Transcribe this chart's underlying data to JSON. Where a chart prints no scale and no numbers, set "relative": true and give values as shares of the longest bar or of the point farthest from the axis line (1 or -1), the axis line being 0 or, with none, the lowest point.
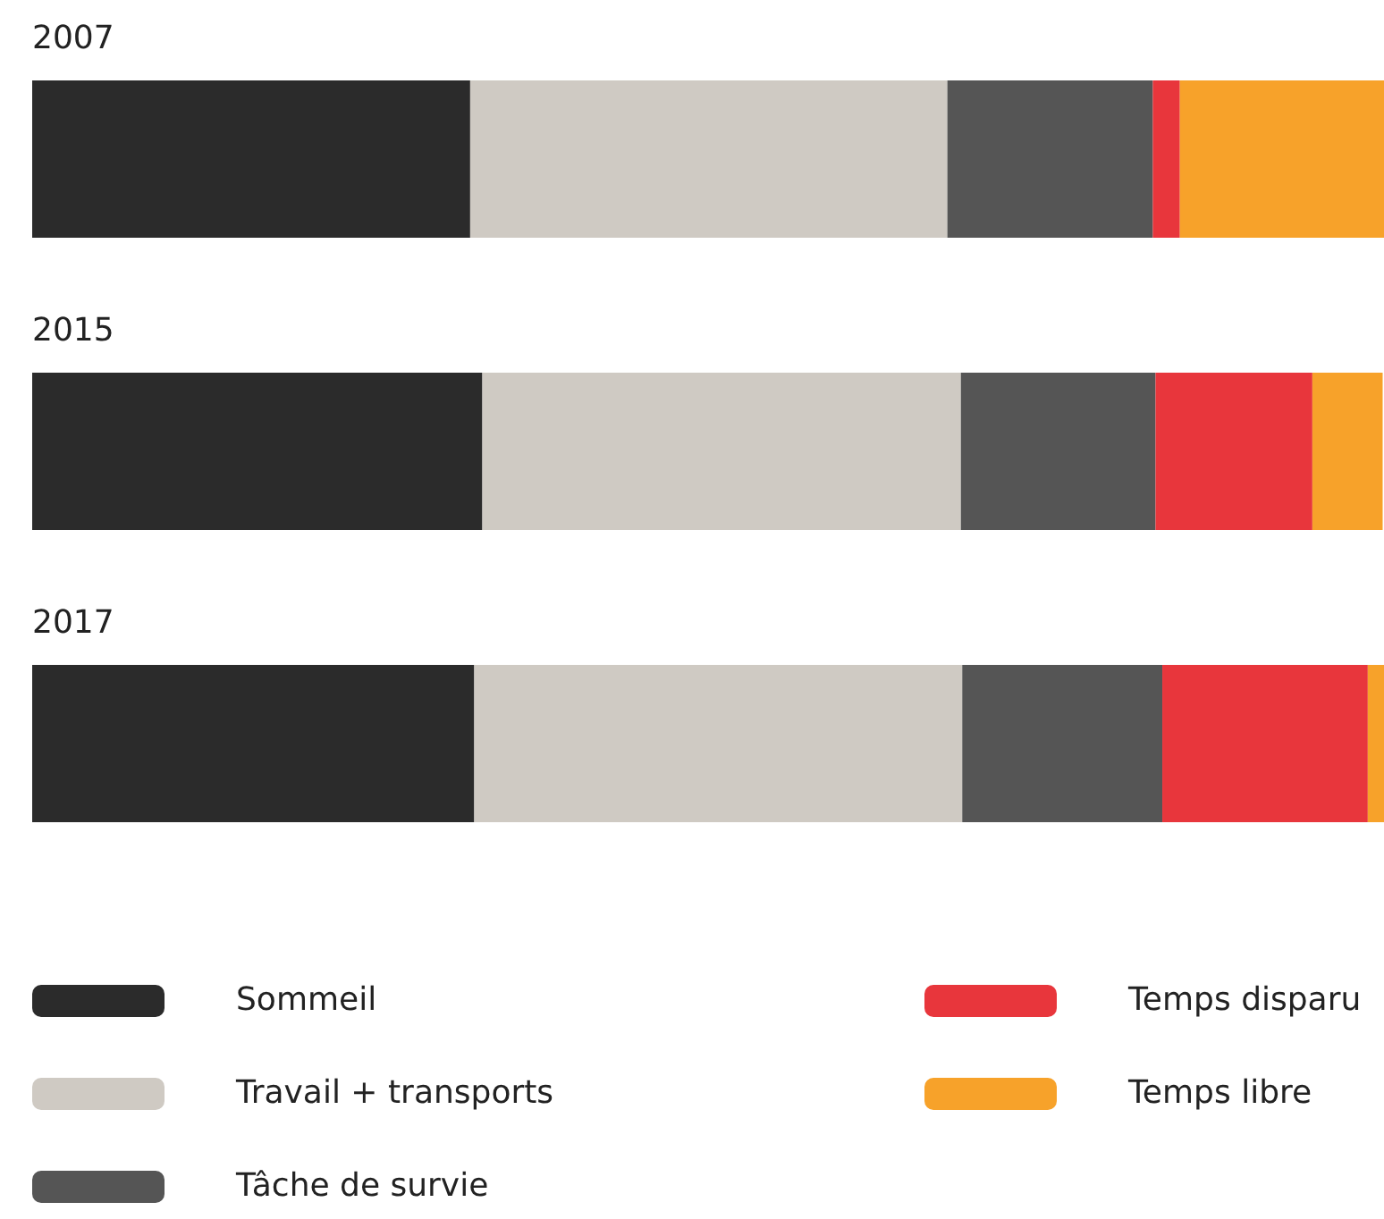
{
  "chart_data": {
    "type": "bar",
    "orientation": "horizontal",
    "stacked": true,
    "relative": true,
    "legend": "bottom",
    "categories": [
      "2007",
      "2015",
      "2017"
    ],
    "series": [
      {
        "name": "Sommeil",
        "color": "#2b2b2b",
        "values": [
          0.324,
          0.333,
          0.327
        ]
      },
      {
        "name": "Travail + transports",
        "color": "#cfcac3",
        "values": [
          0.353,
          0.354,
          0.361
        ]
      },
      {
        "name": "Tâche de survie",
        "color": "#555555",
        "values": [
          0.152,
          0.144,
          0.148
        ]
      },
      {
        "name": "Temps disparu",
        "color": "#e8363c",
        "values": [
          0.02,
          0.116,
          0.152
        ]
      },
      {
        "name": "Temps libre",
        "color": "#f7a22a",
        "values": [
          0.151,
          0.052,
          0.012
        ]
      }
    ]
  }
}
